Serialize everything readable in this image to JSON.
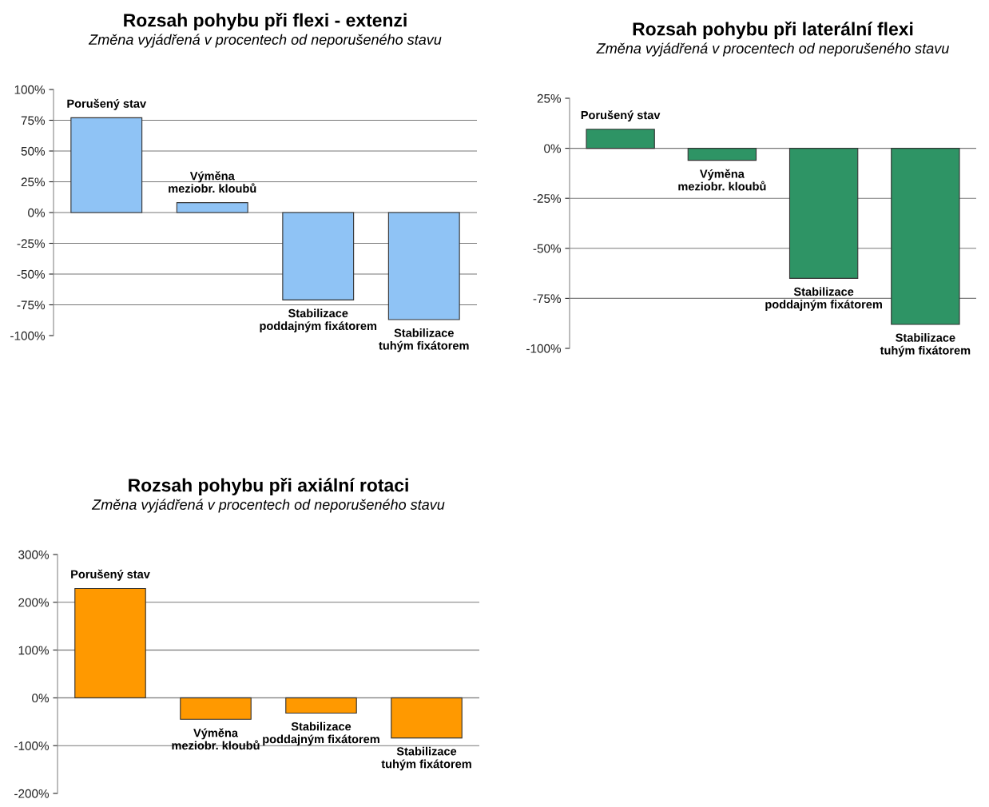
{
  "chart_data": [
    {
      "type": "bar",
      "title": "Rozsah pohybu při flexi - extenzi",
      "subtitle": "Změna vyjádřená v procentech od neporušeného stavu",
      "categories": [
        "Porušený stav",
        "Výměna\nmeziobr. kloubů",
        "Stabilizace\npoddajným fixátorem",
        "Stabilizace\ntuhým fixátorem"
      ],
      "values": [
        77,
        8,
        -71,
        -87
      ],
      "color": "#8fc3f5",
      "ylim": [
        -100,
        100
      ],
      "yticks": [
        {
          "value": -100,
          "label": "-100%"
        },
        {
          "value": -75,
          "label": "-75%"
        },
        {
          "value": -50,
          "label": "-50%"
        },
        {
          "value": -25,
          "label": "-25%"
        },
        {
          "value": 0,
          "label": "0%"
        },
        {
          "value": 25,
          "label": "25%"
        },
        {
          "value": 50,
          "label": "50%"
        },
        {
          "value": 75,
          "label": "75%"
        },
        {
          "value": 100,
          "label": "100%"
        }
      ],
      "grid": "y",
      "tick_labels": "y"
    },
    {
      "type": "bar",
      "title": "Rozsah pohybu při laterální flexi",
      "subtitle": "Změna vyjádřená v procentech od neporušeného stavu",
      "categories": [
        "Porušený stav",
        "Výměna\nmeziobr. kloubů",
        "Stabilizace\npoddajným fixátorem",
        "Stabilizace\ntuhým fixátorem"
      ],
      "values": [
        9.5,
        -6,
        -65,
        -88
      ],
      "color": "#2e9465",
      "ylim": [
        -100,
        25
      ],
      "yticks": [
        {
          "value": -100,
          "label": "-100%"
        },
        {
          "value": -75,
          "label": "-75%"
        },
        {
          "value": -50,
          "label": "-50%"
        },
        {
          "value": -25,
          "label": "-25%"
        },
        {
          "value": 0,
          "label": "0%"
        },
        {
          "value": 25,
          "label": "25%"
        }
      ],
      "grid": "y",
      "tick_labels": "y"
    },
    {
      "type": "bar",
      "title": "Rozsah pohybu při axiální rotaci",
      "subtitle": "Změna vyjádřená v procentech od neporušeného stavu",
      "categories": [
        "Porušený stav",
        "Výměna\nmeziobr. kloubů",
        "Stabilizace\npoddajným fixátorem",
        "Stabilizace\ntuhým fixátorem"
      ],
      "values": [
        229,
        -45,
        -32,
        -84
      ],
      "color": "#ff9900",
      "ylim": [
        -200,
        300
      ],
      "yticks": [
        {
          "value": -200,
          "label": "-200%"
        },
        {
          "value": -100,
          "label": "-100%"
        },
        {
          "value": 0,
          "label": "0%"
        },
        {
          "value": 100,
          "label": "100%"
        },
        {
          "value": 200,
          "label": "200%"
        },
        {
          "value": 300,
          "label": "300%"
        }
      ],
      "grid": "y",
      "tick_labels": "y"
    }
  ]
}
